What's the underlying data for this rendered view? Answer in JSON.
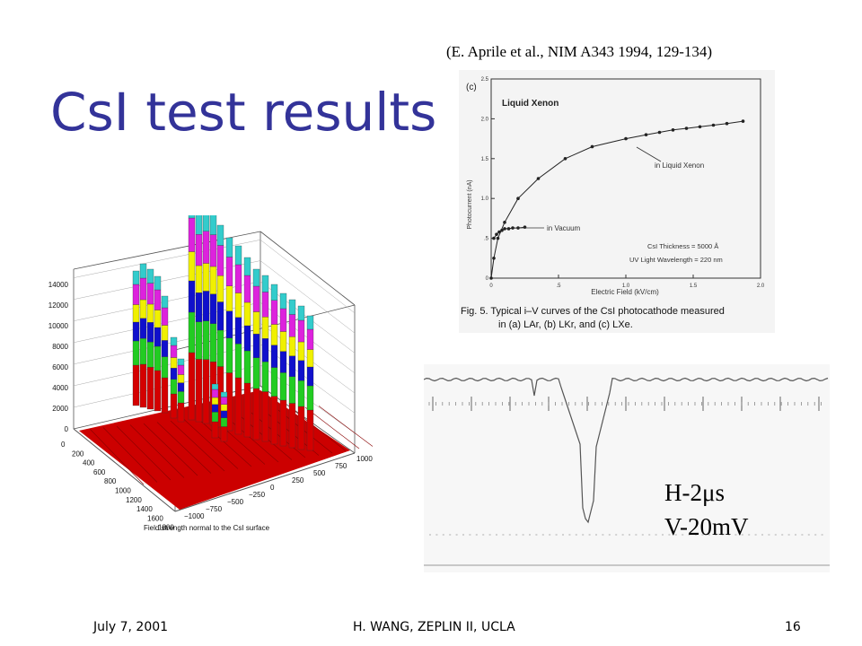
{
  "slide": {
    "title": "CsI test results",
    "citation": "(E. Aprile et al., NIM A343 1994, 129-134)"
  },
  "footer": {
    "date": "July 7, 2001",
    "center": "H. WANG, ZEPLIN II, UCLA",
    "page": "16"
  },
  "iv_plot": {
    "panel_label": "(c)",
    "title": "Liquid Xenon",
    "ylabel": "Photocurrent (nA)",
    "xlabel": "Electric Field (kV/cm)",
    "yticks": [
      "0",
      ".5",
      "1.0",
      "1.5",
      "2.0",
      "2.5"
    ],
    "xticks": [
      "0",
      ".5",
      "1.0",
      "1.5",
      "2.0"
    ],
    "annotation_lxe": "in Liquid Xenon",
    "annotation_vacuum": "in Vacuum",
    "thickness": "CsI Thickness = 5000 Å",
    "wavelength": "UV Light Wavelength = 220 nm",
    "caption_line1": "Fig. 5. Typical i–V curves of the CsI photocathode measured",
    "caption_line2": "in (a) LAr, (b) LKr, and (c) LXe."
  },
  "lego_plot": {
    "zticks": [
      "0",
      "2000",
      "4000",
      "6000",
      "8000",
      "10000",
      "12000",
      "14000"
    ],
    "yticks": [
      "0",
      "200",
      "400",
      "600",
      "800",
      "1000",
      "1200",
      "1400",
      "1600",
      "1800"
    ],
    "xticks": [
      "−1000",
      "−750",
      "−500",
      "−250",
      "0",
      "250",
      "500",
      "750",
      "1000"
    ],
    "xlabel": "Field strength normal to the CsI surface",
    "band_colors": [
      "#d40000",
      "#22cc22",
      "#1010cc",
      "#f0f000",
      "#dd22dd",
      "#33cccc"
    ]
  },
  "scope": {
    "h_label": "H-2μs",
    "v_label": "V-20mV"
  },
  "chart_data": [
    {
      "type": "line",
      "title": "Liquid Xenon",
      "xlabel": "Electric Field (kV/cm)",
      "ylabel": "Photocurrent (nA)",
      "xlim": [
        0,
        2.0
      ],
      "ylim": [
        0,
        2.5
      ],
      "series": [
        {
          "name": "in Liquid Xenon",
          "x": [
            0.0,
            0.02,
            0.05,
            0.1,
            0.2,
            0.35,
            0.55,
            0.75,
            1.0,
            1.15,
            1.25,
            1.35,
            1.45,
            1.55,
            1.65,
            1.75,
            1.87
          ],
          "y": [
            0.0,
            0.25,
            0.5,
            0.7,
            1.0,
            1.25,
            1.5,
            1.65,
            1.75,
            1.8,
            1.83,
            1.86,
            1.88,
            1.9,
            1.92,
            1.94,
            1.97
          ]
        },
        {
          "name": "in Vacuum",
          "x": [
            0.02,
            0.04,
            0.06,
            0.08,
            0.1,
            0.13,
            0.16,
            0.2,
            0.25
          ],
          "y": [
            0.5,
            0.55,
            0.58,
            0.6,
            0.62,
            0.62,
            0.63,
            0.63,
            0.64
          ]
        }
      ]
    }
  ]
}
